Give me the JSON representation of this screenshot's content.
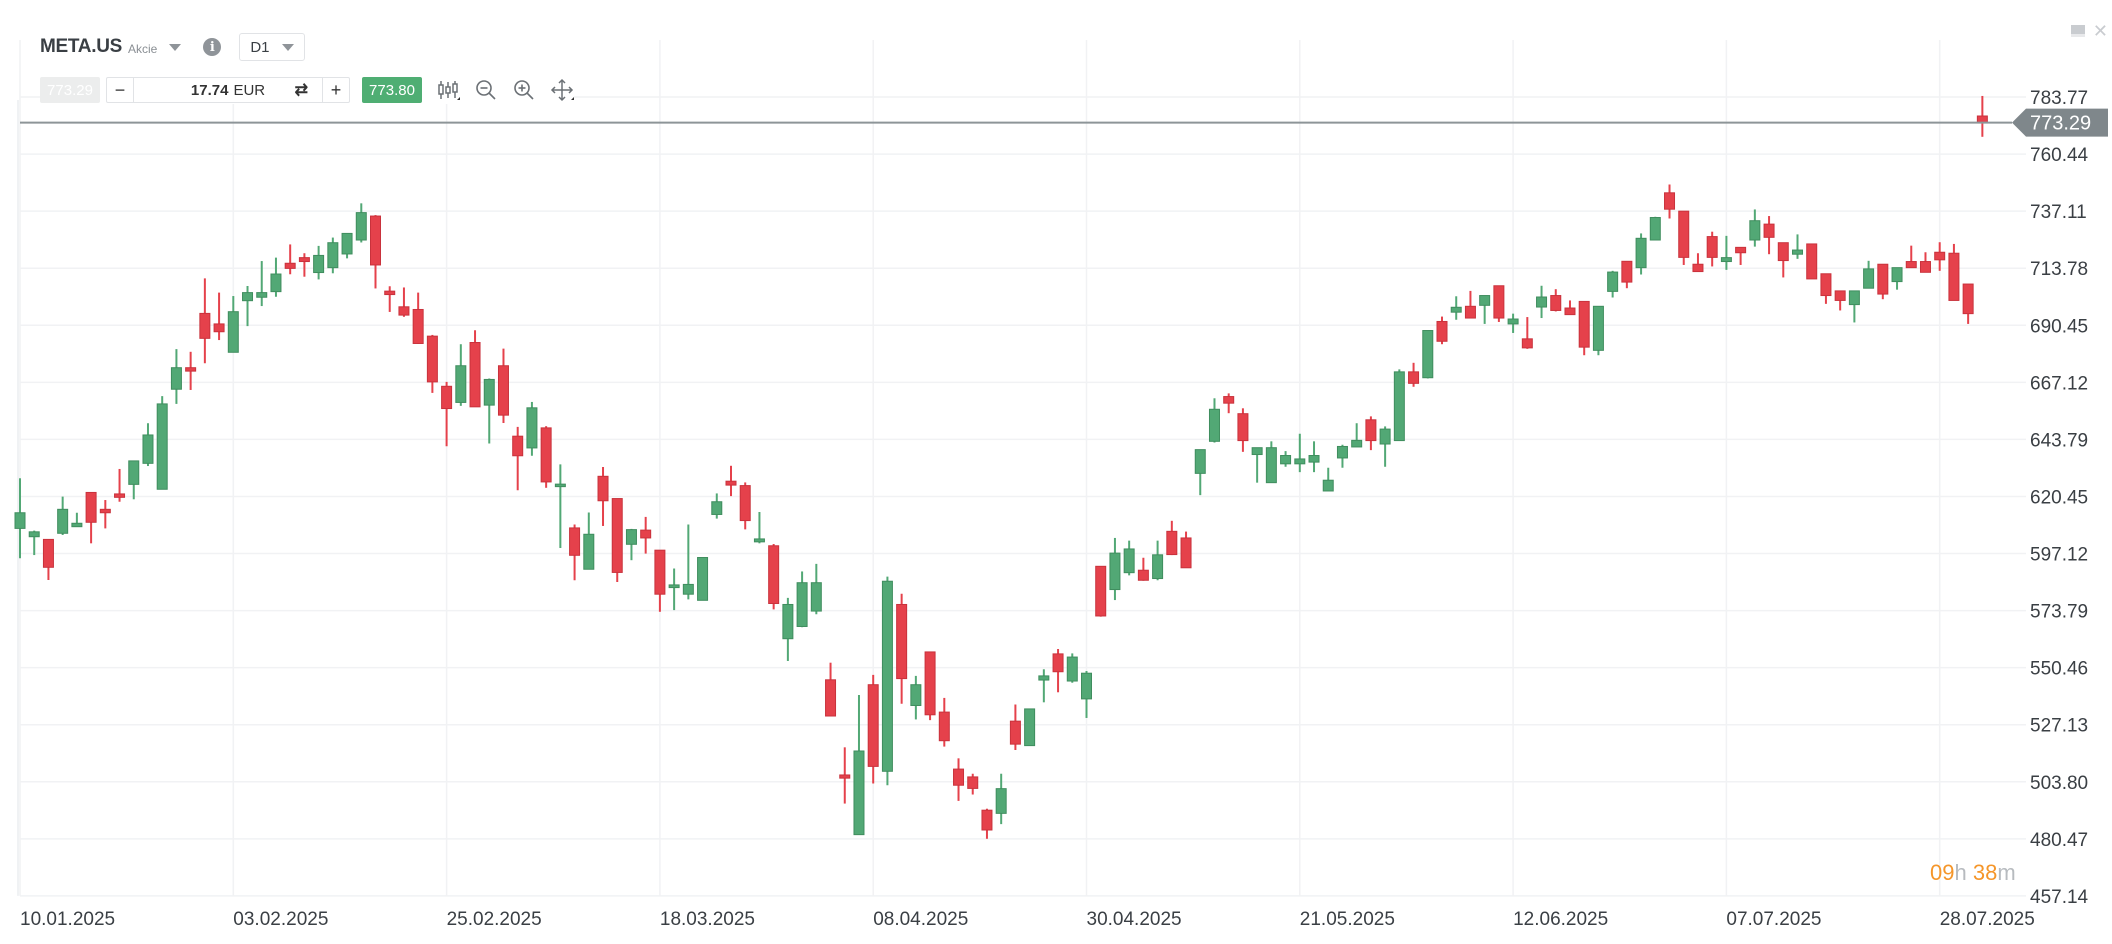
{
  "instrument": {
    "symbol": "META.US",
    "type": "Akcie",
    "timeframe": "D1"
  },
  "trade": {
    "sell_price": "773.29",
    "amount": "17.74",
    "currency": "EUR",
    "buy_price": "773.80",
    "minus_label": "−",
    "plus_label": "+"
  },
  "icons": {
    "instrument_menu": "caret-down-icon",
    "info": "info-icon",
    "swap": "swap-icon",
    "chart_type": "candlestick-icon",
    "zoom_out": "zoom-out-icon",
    "zoom_in": "zoom-in-icon",
    "pan": "move-icon",
    "minimize": "minimize-icon",
    "close": "close-icon"
  },
  "timer": {
    "hours": "09",
    "h_unit": "h",
    "minutes": "38",
    "m_unit": "m"
  },
  "colors": {
    "up": "#52a875",
    "down": "#e5414b",
    "price_tag": "#7f878b",
    "buy": "#4fae73",
    "timer": "#f5962a"
  },
  "chart_data": {
    "type": "candlestick",
    "current_price": "773.29",
    "y_ticks": [
      "783.77",
      "760.44",
      "737.11",
      "713.78",
      "690.45",
      "667.12",
      "643.79",
      "620.45",
      "597.12",
      "573.79",
      "550.46",
      "527.13",
      "503.80",
      "480.47",
      "457.14"
    ],
    "x_labels": [
      "10.01.2025",
      "03.02.2025",
      "25.02.2025",
      "18.03.2025",
      "08.04.2025",
      "30.04.2025",
      "21.05.2025",
      "12.06.2025",
      "07.07.2025",
      "28.07.2025"
    ],
    "grid": true,
    "columns": [
      "date",
      "open",
      "high",
      "low",
      "close"
    ],
    "candles": [
      [
        "10.01.2025",
        607.4,
        627.9,
        595.2,
        613.8
      ],
      [
        "13.01.2025",
        604,
        606.5,
        596.5,
        606
      ],
      [
        "14.01.2025",
        602.9,
        603,
        586.3,
        591.5
      ],
      [
        "15.01.2025",
        605.4,
        620.4,
        604.7,
        615.2
      ],
      [
        "16.01.2025",
        608.1,
        613.8,
        608,
        609.5
      ],
      [
        "17.01.2025",
        622.1,
        622.1,
        601.3,
        609.9
      ],
      [
        "21.01.2025",
        615.2,
        619,
        607.4,
        613.8
      ],
      [
        "22.01.2025",
        621.5,
        631.7,
        618.3,
        620.1
      ],
      [
        "23.01.2025",
        625.4,
        635,
        619.3,
        635
      ],
      [
        "24.01.2025",
        634,
        650.4,
        632.9,
        645.6
      ],
      [
        "27.01.2025",
        623.4,
        661.5,
        623.4,
        658.3
      ],
      [
        "28.01.2025",
        664.3,
        680.7,
        658.3,
        673.1
      ],
      [
        "29.01.2025",
        673.1,
        679.6,
        664,
        671.7
      ],
      [
        "30.01.2025",
        695.3,
        709.6,
        674.9,
        685.1
      ],
      [
        "31.01.2025",
        691,
        703.8,
        684.4,
        687.8
      ],
      [
        "03.02.2025",
        679.4,
        702.4,
        679.4,
        696
      ],
      [
        "04.02.2025",
        700.5,
        706.5,
        690.1,
        703.8
      ],
      [
        "05.02.2025",
        701.9,
        716.7,
        698.3,
        703.8
      ],
      [
        "06.02.2025",
        704.2,
        718.1,
        702.1,
        711.4
      ],
      [
        "07.02.2025",
        715.8,
        723.5,
        711.3,
        713.7
      ],
      [
        "10.02.2025",
        718.1,
        719.9,
        710.3,
        716.5
      ],
      [
        "11.02.2025",
        712,
        722.9,
        709.2,
        719
      ],
      [
        "12.02.2025",
        714,
        726.3,
        711.7,
        724.2
      ],
      [
        "13.02.2025",
        719.6,
        728,
        717.8,
        728
      ],
      [
        "14.02.2025",
        725.3,
        740.3,
        724.3,
        736.5
      ],
      [
        "18.02.2025",
        735.1,
        735.5,
        705.5,
        715.1
      ],
      [
        "19.02.2025",
        704.4,
        706.4,
        695.9,
        703
      ],
      [
        "20.02.2025",
        698,
        705.9,
        693.9,
        694.6
      ],
      [
        "21.02.2025",
        696.9,
        703.8,
        682.8,
        683
      ],
      [
        "24.02.2025",
        686,
        686.5,
        662.8,
        667.3
      ],
      [
        "25.02.2025",
        665.5,
        667.3,
        641,
        656.4
      ],
      [
        "26.02.2025",
        658.9,
        682.7,
        657.5,
        673.9
      ],
      [
        "27.02.2025",
        683.4,
        688.4,
        657.1,
        657.1
      ],
      [
        "28.02.2025",
        657.8,
        668.7,
        642.1,
        668.3
      ],
      [
        "03.03.2025",
        673.9,
        680.9,
        650.5,
        653.7
      ],
      [
        "04.03.2025",
        645.1,
        648.9,
        623,
        637.1
      ],
      [
        "05.03.2025",
        640.3,
        659.1,
        637.1,
        656.7
      ],
      [
        "06.03.2025",
        648.5,
        649.2,
        624,
        626.4
      ],
      [
        "07.03.2025",
        624.5,
        633.6,
        599.4,
        625.5
      ],
      [
        "10.03.2025",
        607.6,
        609,
        586.2,
        596.4
      ],
      [
        "11.03.2025",
        590.7,
        613.9,
        590.7,
        605
      ],
      [
        "12.03.2025",
        628.7,
        632.5,
        608.4,
        618.7
      ],
      [
        "13.03.2025",
        619.6,
        619.6,
        585.5,
        589.4
      ],
      [
        "14.03.2025",
        600.9,
        607.2,
        594.4,
        606.9
      ],
      [
        "17.03.2025",
        606.7,
        612.1,
        597.1,
        603.5
      ],
      [
        "18.03.2025",
        598.5,
        598.5,
        573.3,
        580.5
      ],
      [
        "19.03.2025",
        583.2,
        591,
        574,
        584.3
      ],
      [
        "20.03.2025",
        580.5,
        609,
        578.4,
        584.5
      ],
      [
        "21.03.2025",
        578,
        595.5,
        578,
        595.5
      ],
      [
        "24.03.2025",
        613.1,
        621.7,
        611.4,
        618.3
      ],
      [
        "25.03.2025",
        626.7,
        633,
        620.6,
        625.1
      ],
      [
        "26.03.2025",
        624.9,
        626.2,
        607,
        610.6
      ],
      [
        "27.03.2025",
        601.9,
        614.1,
        601.3,
        603.1
      ],
      [
        "28.03.2025",
        600.3,
        601,
        574.3,
        576.7
      ],
      [
        "31.03.2025",
        562.3,
        579,
        553.2,
        576.3
      ],
      [
        "01.04.2025",
        567.3,
        589.8,
        567,
        585.2
      ],
      [
        "02.04.2025",
        573.6,
        592.9,
        572.3,
        585.2
      ],
      [
        "03.04.2025",
        545.5,
        552.5,
        530.7,
        530.7
      ],
      [
        "04.04.2025",
        506.6,
        517.9,
        494.9,
        505.3
      ],
      [
        "07.04.2025",
        482.2,
        539.3,
        482.2,
        516.4
      ],
      [
        "08.04.2025",
        543.5,
        547.5,
        503.1,
        510.1
      ],
      [
        "09.04.2025",
        508.1,
        587.7,
        502.4,
        585.8
      ],
      [
        "10.04.2025",
        576.3,
        580.7,
        535.7,
        546
      ],
      [
        "11.04.2025",
        535,
        547.1,
        529.3,
        543.5
      ],
      [
        "14.04.2025",
        556.9,
        556.9,
        529,
        531.2
      ],
      [
        "15.04.2025",
        532.3,
        538.1,
        518.2,
        520.6
      ],
      [
        "16.04.2025",
        509,
        513.4,
        496,
        502.4
      ],
      [
        "17.04.2025",
        505.8,
        507.1,
        498.6,
        501.1
      ],
      [
        "21.04.2025",
        492.2,
        492.8,
        480.5,
        484.1
      ],
      [
        "22.04.2025",
        490.9,
        507.1,
        486.5,
        501
      ],
      [
        "23.04.2025",
        528.6,
        535.4,
        516.8,
        519.2
      ],
      [
        "24.04.2025",
        518.6,
        533.6,
        518.6,
        533.6
      ],
      [
        "25.04.2025",
        545.4,
        549.8,
        536.3,
        547.1
      ],
      [
        "28.04.2025",
        556.1,
        558.1,
        540.4,
        548.8
      ],
      [
        "29.04.2025",
        545,
        556.3,
        544.3,
        554.8
      ],
      [
        "30.04.2025",
        537.7,
        549.1,
        529.9,
        548.2
      ],
      [
        "01.05.2025",
        591.9,
        592,
        571.3,
        571.6
      ],
      [
        "02.05.2025",
        582.4,
        603.5,
        578.1,
        597.3
      ],
      [
        "05.05.2025",
        589.3,
        602.4,
        588.2,
        599
      ],
      [
        "06.05.2025",
        590.3,
        595.4,
        586,
        586.2
      ],
      [
        "07.05.2025",
        586.9,
        602.4,
        586.2,
        596.6
      ],
      [
        "08.05.2025",
        606.2,
        610.5,
        596.5,
        596.7
      ],
      [
        "09.05.2025",
        603.5,
        606.1,
        591.3,
        591.3
      ],
      [
        "12.05.2025",
        629.9,
        639.6,
        621,
        639.6
      ],
      [
        "13.05.2025",
        643,
        660.6,
        642.5,
        656.1
      ],
      [
        "14.05.2025",
        661.3,
        662.6,
        654.5,
        658.6
      ],
      [
        "15.05.2025",
        654.3,
        656.5,
        638.7,
        643.3
      ],
      [
        "16.05.2025",
        637.6,
        640.4,
        626.1,
        640.4
      ],
      [
        "19.05.2025",
        626.1,
        643,
        626.1,
        640.4
      ],
      [
        "20.05.2025",
        633.8,
        639,
        632.6,
        637.2
      ],
      [
        "21.05.2025",
        633.8,
        646.1,
        630.4,
        635.8
      ],
      [
        "22.05.2025",
        634.5,
        643,
        630.4,
        637.2
      ],
      [
        "23.05.2025",
        622.7,
        632.2,
        622.7,
        627.1
      ],
      [
        "27.05.2025",
        636.2,
        641.6,
        632.2,
        640.9
      ],
      [
        "28.05.2025",
        640.7,
        650.4,
        640.7,
        643.4
      ],
      [
        "29.05.2025",
        651.8,
        653.2,
        639.4,
        643.3
      ],
      [
        "30.05.2025",
        641.9,
        649.1,
        632.6,
        648
      ],
      [
        "02.06.2025",
        643.3,
        672.4,
        643.3,
        671.4
      ],
      [
        "03.06.2025",
        671.4,
        675.1,
        665.3,
        666.7
      ],
      [
        "04.06.2025",
        669,
        688.3,
        668.7,
        688.3
      ],
      [
        "05.06.2025",
        692,
        694,
        682.7,
        683.9
      ],
      [
        "06.06.2025",
        695.8,
        702.3,
        692.7,
        697.8
      ],
      [
        "09.06.2025",
        698.2,
        704.5,
        693.4,
        693.4
      ],
      [
        "10.06.2025",
        698.6,
        702.6,
        691,
        702.6
      ],
      [
        "11.06.2025",
        706.6,
        706.6,
        691.8,
        693.4
      ],
      [
        "12.06.2025",
        691,
        695.2,
        687.3,
        693
      ],
      [
        "13.06.2025",
        684.9,
        693.8,
        680.8,
        681.2
      ],
      [
        "16.06.2025",
        697.9,
        706.6,
        693.4,
        702
      ],
      [
        "17.06.2025",
        702.6,
        705.2,
        696.1,
        696.5
      ],
      [
        "18.06.2025",
        697.5,
        700.6,
        694.8,
        694.8
      ],
      [
        "20.06.2025",
        700.2,
        700.2,
        678.2,
        681.5
      ],
      [
        "23.06.2025",
        680.2,
        698.2,
        678.2,
        698.2
      ],
      [
        "24.06.2025",
        704.3,
        712.7,
        701.8,
        712.2
      ],
      [
        "25.06.2025",
        716.6,
        716.6,
        705.6,
        708.1
      ],
      [
        "26.06.2025",
        714,
        728,
        711.2,
        726
      ],
      [
        "27.06.2025",
        725.3,
        734.8,
        725.3,
        734.5
      ],
      [
        "30.06.2025",
        744.6,
        748,
        734.1,
        737.9
      ],
      [
        "01.07.2025",
        737.1,
        737.1,
        715.1,
        718.2
      ],
      [
        "02.07.2025",
        715.4,
        719.9,
        712.4,
        712.4
      ],
      [
        "03.07.2025",
        726.7,
        728.7,
        714.5,
        718.2
      ],
      [
        "07.07.2025",
        716.5,
        727,
        713.1,
        718.1
      ],
      [
        "08.07.2025",
        722.3,
        722.3,
        715.1,
        720.1
      ],
      [
        "09.07.2025",
        725.3,
        737.8,
        722.6,
        733.2
      ],
      [
        "10.07.2025",
        731.8,
        735.1,
        719.5,
        726.4
      ],
      [
        "11.07.2025",
        724.2,
        724.2,
        710,
        716.9
      ],
      [
        "14.07.2025",
        719.5,
        727.6,
        717.6,
        721.2
      ],
      [
        "15.07.2025",
        723.7,
        723.7,
        709.4,
        709.4
      ],
      [
        "16.07.2025",
        711.5,
        711.5,
        699.2,
        702.6
      ],
      [
        "17.07.2025",
        704.5,
        704.5,
        696.5,
        700.6
      ],
      [
        "18.07.2025",
        698.9,
        704.5,
        691.6,
        704.5
      ],
      [
        "21.07.2025",
        705.6,
        716.8,
        705.6,
        713.5
      ],
      [
        "22.07.2025",
        715.4,
        715.4,
        701.1,
        703.2
      ],
      [
        "23.07.2025",
        708.3,
        714,
        705,
        714
      ],
      [
        "24.07.2025",
        716.5,
        723,
        714,
        714
      ],
      [
        "25.07.2025",
        716.5,
        720.3,
        712.1,
        712.1
      ],
      [
        "28.07.2025",
        720.3,
        724.4,
        712.7,
        717.2
      ],
      [
        "29.07.2025",
        719.9,
        723.7,
        700.6,
        700.6
      ],
      [
        "30.07.2025",
        707.3,
        707.3,
        691,
        695.2
      ],
      [
        "31.07.2025",
        776,
        784.2,
        767.5,
        773.29
      ]
    ]
  }
}
